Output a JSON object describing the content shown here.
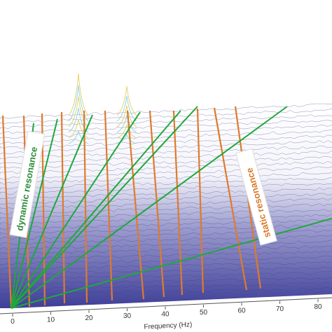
{
  "chart_data": {
    "type": "waterfall",
    "title": "",
    "xlabel": "Frequency (Hz)",
    "ylabel": "",
    "xlim": [
      0,
      90
    ],
    "x_ticks": [
      "0",
      "10",
      "20",
      "30",
      "40",
      "50",
      "60",
      "70",
      "80"
    ],
    "peaks": [
      {
        "frequency": 18,
        "relative_height": 1.0
      },
      {
        "frequency": 31,
        "relative_height": 0.7
      }
    ],
    "annotations": [
      {
        "text": "dynamic resonance",
        "color": "#2e8b3a"
      },
      {
        "text": "static resonance",
        "color": "#d97a2b"
      }
    ],
    "colors": {
      "spectrum": "#3b3b8f",
      "fill": "#4a4aa0",
      "static_lines": "#e07a2a",
      "dynamic_lines": "#1fa83a"
    }
  }
}
